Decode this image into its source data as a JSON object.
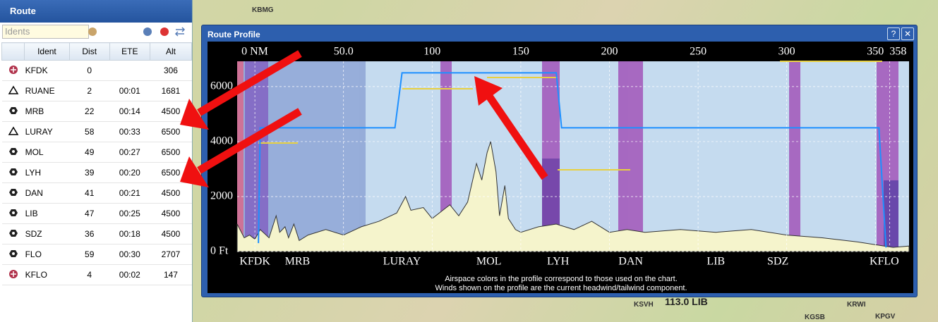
{
  "route_panel": {
    "title": "Route",
    "search_placeholder": "Idents",
    "columns": [
      "Ident",
      "Dist",
      "ETE",
      "Alt"
    ],
    "rows": [
      [
        "KFDK",
        0,
        null,
        306
      ],
      [
        "RUANE",
        2,
        "00:01",
        1681
      ],
      [
        "MRB",
        22,
        "00:14",
        4500
      ],
      [
        "LURAY",
        58,
        "00:33",
        6500
      ],
      [
        "MOL",
        49,
        "00:27",
        6500
      ],
      [
        "LYH",
        39,
        "00:20",
        6500
      ],
      [
        "DAN",
        41,
        "00:21",
        4500
      ],
      [
        "LIB",
        47,
        "00:25",
        4500
      ],
      [
        "SDZ",
        36,
        "00:18",
        4500
      ],
      [
        "FLO",
        59,
        "00:30",
        2707
      ],
      [
        "KFLO",
        4,
        "00:02",
        147
      ]
    ]
  },
  "map": {
    "labels": [
      "113.0 LIB",
      "KSVH",
      "KGSB",
      "KRWI",
      "KPGV",
      "KBMG"
    ]
  },
  "profile": {
    "title": "Route Profile",
    "notes": [
      "Airspace colors in the profile correspond to those used on the chart.",
      "Winds shown on the profile are the current headwind/tailwind component."
    ]
  },
  "chart_data": {
    "type": "line",
    "xlim": [
      -10,
      369
    ],
    "ylim": [
      0,
      6920
    ],
    "xticks": [
      {
        "value": 0,
        "label": "0 NM"
      },
      {
        "value": 50,
        "label": "50.0"
      },
      100,
      150,
      200,
      250,
      300,
      350,
      358
    ],
    "yticks": [
      {
        "value": 0,
        "label": "0 Ft"
      },
      2000,
      4000,
      6000
    ],
    "grid": true,
    "waypoints": {
      "labels": [
        "KFDK",
        "MRB",
        "LURAY",
        "MOL",
        "LYH",
        "DAN",
        "LIB",
        "SDZ",
        "KFLO"
      ],
      "x": [
        0,
        24,
        83,
        132,
        171,
        212,
        260,
        295,
        355
      ]
    },
    "series": [
      {
        "type": "area",
        "color": "#f5f4cc",
        "x": [
          -10,
          -6,
          -3,
          0,
          3,
          8,
          12,
          14,
          17,
          19,
          22,
          25,
          30,
          40,
          50,
          60,
          70,
          80,
          85,
          88,
          95,
          100,
          110,
          115,
          120,
          125,
          128,
          131,
          133,
          136,
          138,
          141,
          143,
          147,
          150,
          160,
          170,
          180,
          190,
          200,
          210,
          220,
          240,
          260,
          280,
          300,
          320,
          340,
          355,
          360,
          369
        ],
        "values": [
          1000,
          500,
          600,
          450,
          800,
          500,
          1300,
          700,
          900,
          500,
          1000,
          400,
          600,
          800,
          600,
          900,
          1100,
          1400,
          2000,
          1500,
          1600,
          1200,
          1700,
          1300,
          1800,
          3200,
          2600,
          3600,
          4000,
          2900,
          1300,
          2400,
          1200,
          800,
          700,
          900,
          1000,
          800,
          1100,
          700,
          800,
          700,
          800,
          700,
          800,
          600,
          500,
          350,
          200,
          150,
          200
        ]
      },
      {
        "type": "line",
        "color": "#1e90ff",
        "x": [
          2,
          3,
          6,
          79,
          83,
          170,
          173,
          352,
          356
        ],
        "values": [
          306,
          4500,
          4500,
          4500,
          6500,
          6500,
          4500,
          4500,
          147
        ]
      }
    ]
  }
}
